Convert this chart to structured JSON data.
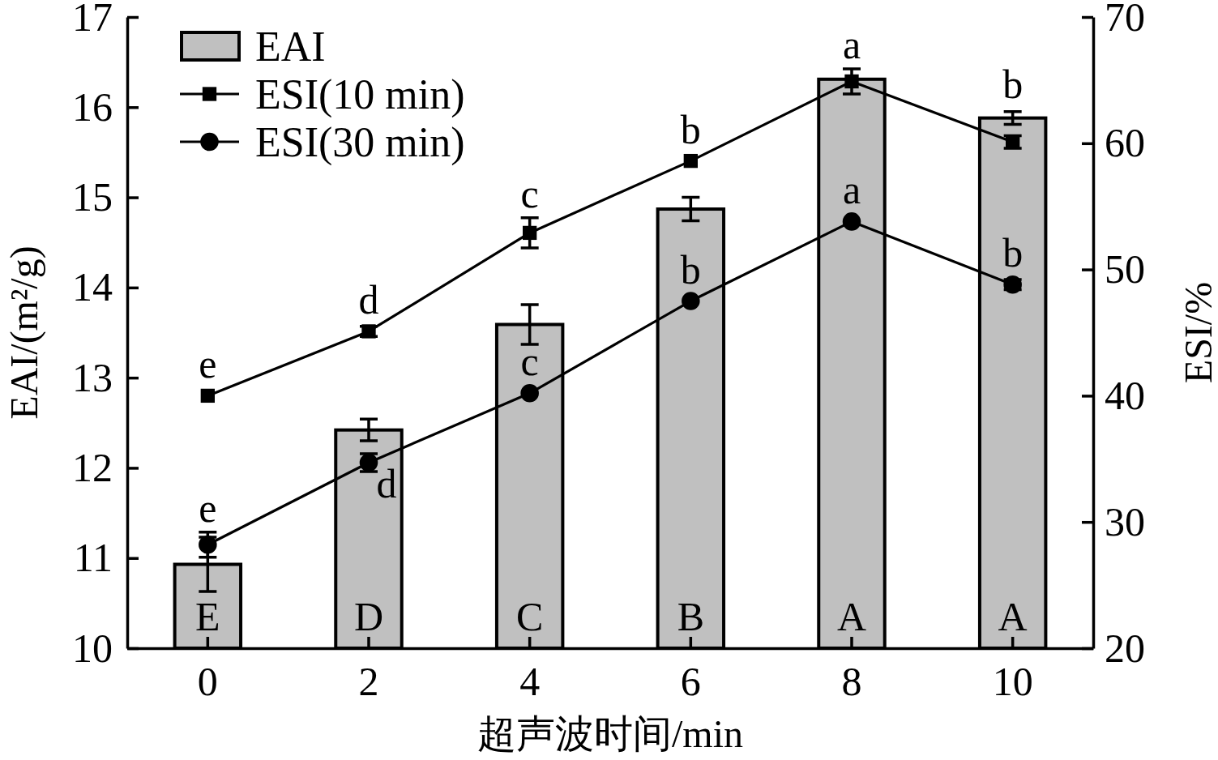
{
  "chart_data": {
    "type": "bar",
    "categories": [
      "0",
      "2",
      "4",
      "6",
      "8",
      "10"
    ],
    "xlabel": "超声波时间/min",
    "ylabel": "EAI/(m²/g)",
    "y2label": "ESI/%",
    "ylim": [
      10,
      17
    ],
    "yticks": [
      10,
      11,
      12,
      13,
      14,
      15,
      16,
      17
    ],
    "y2lim": [
      20,
      70
    ],
    "y2ticks": [
      20,
      30,
      40,
      50,
      60,
      70
    ],
    "legend": "top left",
    "series": [
      {
        "name": "EAI",
        "color": "#c0c0c0",
        "values": [
          10.93,
          12.42,
          13.59,
          14.87,
          16.31,
          15.88
        ],
        "errors": [
          0.3,
          0.12,
          0.22,
          0.13,
          null,
          0.07
        ],
        "value_labels": [
          "E",
          "D",
          "C",
          "B",
          "A",
          "A"
        ]
      },
      {
        "name": "ESI(10 min)",
        "type": "line",
        "axis": "y2",
        "color": "#000000",
        "marker": "square",
        "values": [
          40.0,
          45.1,
          52.9,
          58.6,
          64.9,
          60.1
        ],
        "errors": [
          null,
          0.4,
          1.2,
          null,
          1.0,
          0.5
        ],
        "value_labels": [
          "e",
          "d",
          "c",
          "b",
          "a",
          "b"
        ]
      },
      {
        "name": "ESI(30 min)",
        "type": "line",
        "axis": "y2",
        "color": "#000000",
        "marker": "circle",
        "values": [
          28.2,
          34.7,
          40.2,
          47.5,
          53.8,
          48.8
        ],
        "errors": [
          1.0,
          0.7,
          null,
          null,
          null,
          0.4
        ],
        "value_labels": [
          "e",
          "d",
          "c",
          "b",
          "a",
          "b"
        ]
      }
    ]
  }
}
